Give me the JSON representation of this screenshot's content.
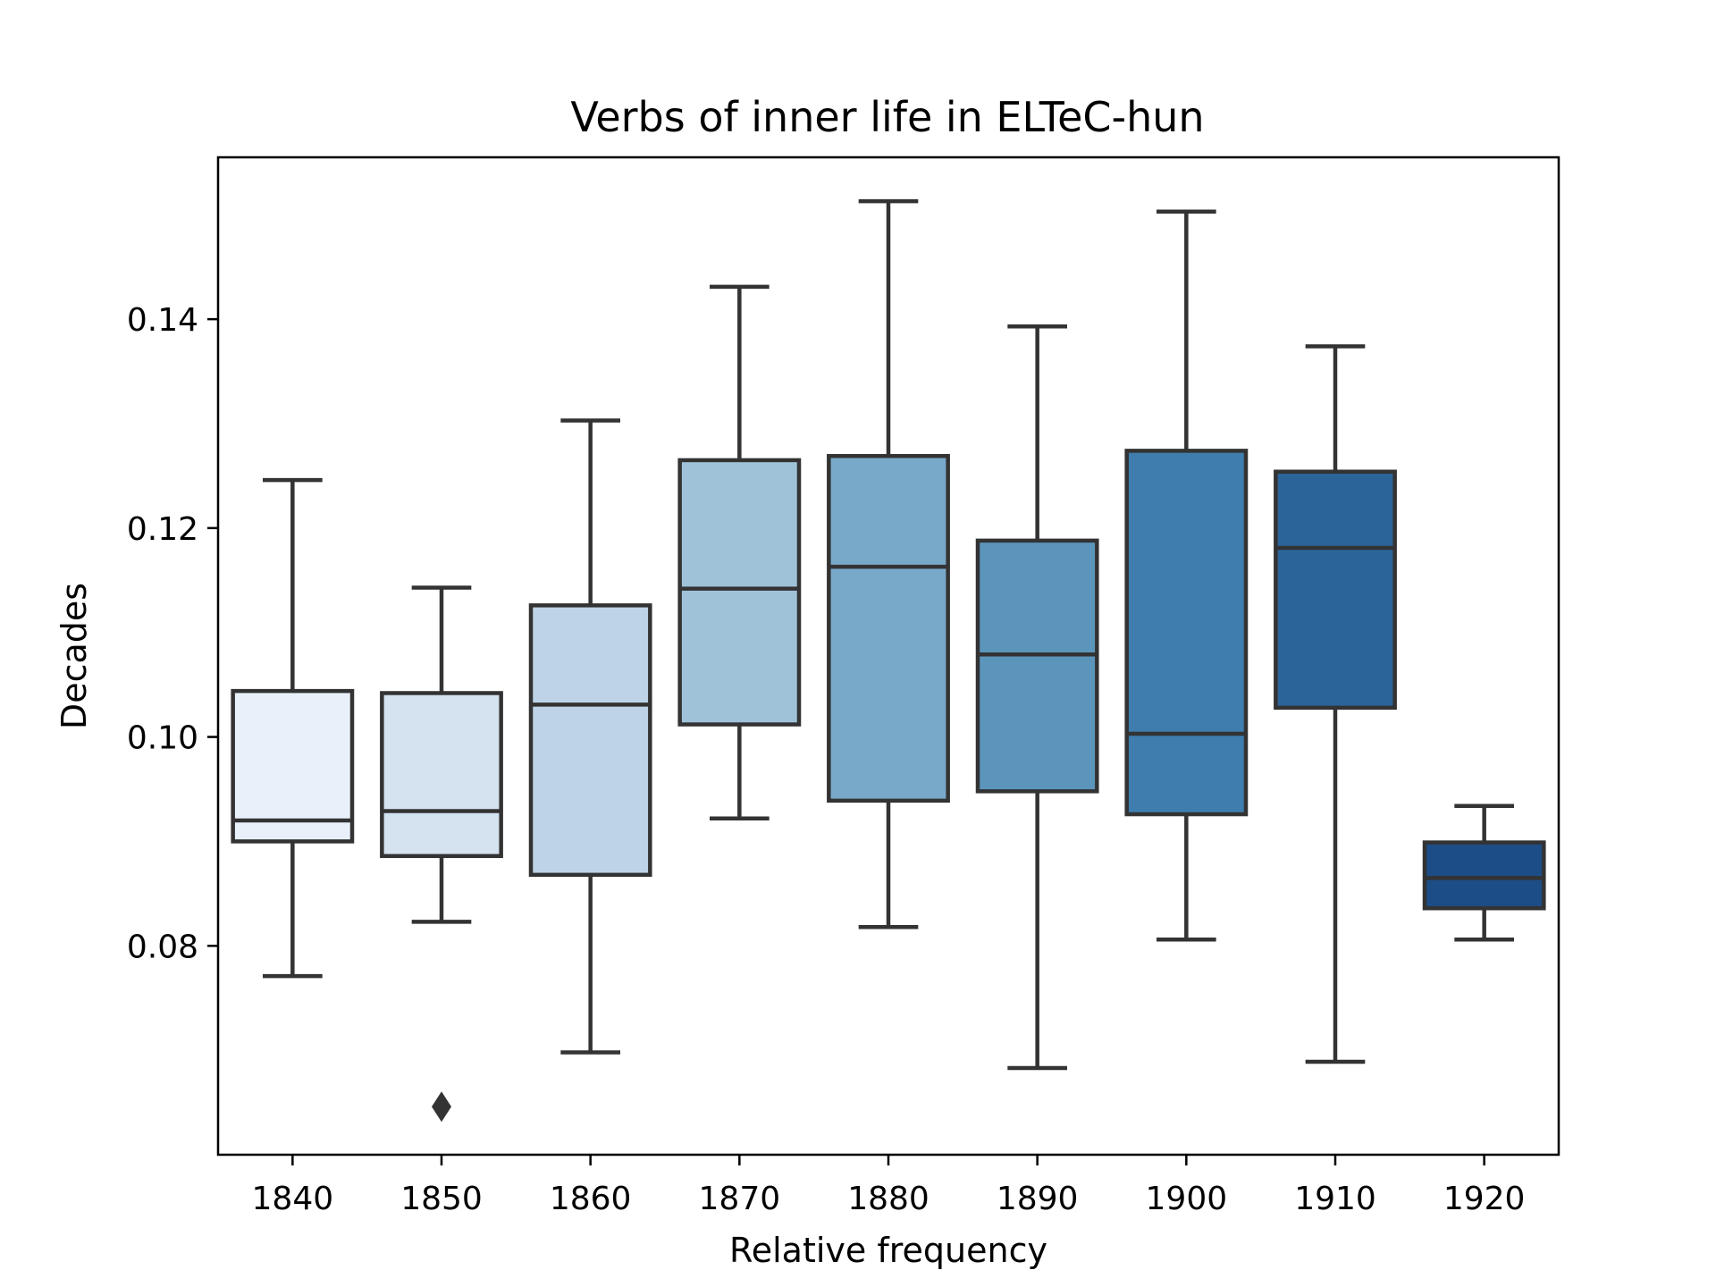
{
  "chart_data": {
    "type": "box",
    "title": "Verbs of inner life in ELTeC-hun",
    "xlabel": "Relative frequency",
    "ylabel": "Decades",
    "ylim": [
      0.06,
      0.1555
    ],
    "yticks": [
      0.08,
      0.1,
      0.12,
      0.14
    ],
    "ytick_labels": [
      "0.08",
      "0.10",
      "0.12",
      "0.14"
    ],
    "grid": false,
    "categories": [
      "1840",
      "1850",
      "1860",
      "1870",
      "1880",
      "1890",
      "1900",
      "1910",
      "1920"
    ],
    "boxes": [
      {
        "category": "1840",
        "whisker_low": 0.0771,
        "q1": 0.09,
        "median": 0.092,
        "q3": 0.1044,
        "whisker_high": 0.1246,
        "outliers": [],
        "color": "#e8f1fa"
      },
      {
        "category": "1850",
        "whisker_low": 0.0823,
        "q1": 0.0886,
        "median": 0.0929,
        "q3": 0.1042,
        "whisker_high": 0.1143,
        "outliers": [
          0.0646
        ],
        "color": "#d5e3f1"
      },
      {
        "category": "1860",
        "whisker_low": 0.0698,
        "q1": 0.0868,
        "median": 0.1031,
        "q3": 0.1126,
        "whisker_high": 0.1303,
        "outliers": [],
        "color": "#bed4e6"
      },
      {
        "category": "1870",
        "whisker_low": 0.0922,
        "q1": 0.1012,
        "median": 0.1142,
        "q3": 0.1265,
        "whisker_high": 0.1431,
        "outliers": [],
        "color": "#9fc2d8"
      },
      {
        "category": "1880",
        "whisker_low": 0.0818,
        "q1": 0.0939,
        "median": 0.1163,
        "q3": 0.1269,
        "whisker_high": 0.1513,
        "outliers": [],
        "color": "#79a9c9"
      },
      {
        "category": "1890",
        "whisker_low": 0.0683,
        "q1": 0.0948,
        "median": 0.1079,
        "q3": 0.1188,
        "whisker_high": 0.1393,
        "outliers": [],
        "color": "#5b95bc"
      },
      {
        "category": "1900",
        "whisker_low": 0.0806,
        "q1": 0.0926,
        "median": 0.1003,
        "q3": 0.1274,
        "whisker_high": 0.1503,
        "outliers": [],
        "color": "#3e7dad"
      },
      {
        "category": "1910",
        "whisker_low": 0.0689,
        "q1": 0.1028,
        "median": 0.1181,
        "q3": 0.1254,
        "whisker_high": 0.1374,
        "outliers": [],
        "color": "#2b6499"
      },
      {
        "category": "1920",
        "whisker_low": 0.0806,
        "q1": 0.0836,
        "median": 0.0865,
        "q3": 0.0899,
        "whisker_high": 0.0934,
        "outliers": [],
        "color": "#1d4d86"
      }
    ]
  }
}
